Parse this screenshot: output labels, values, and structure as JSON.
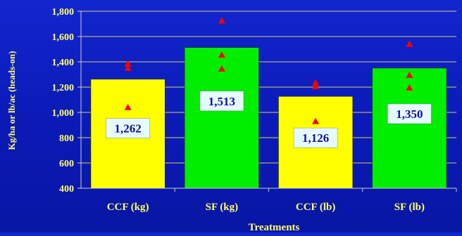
{
  "colors": {
    "background": "#0b1ab6",
    "grid": "#d8d070",
    "axis_text": "#ffff66",
    "bar_yellow": "#ffff00",
    "bar_green": "#00ee00",
    "marker": "#ff0000",
    "label_box": "#e6fbff",
    "label_text": "#1010a0"
  },
  "chart_data": {
    "type": "bar",
    "title": "",
    "xlabel": "Treatments",
    "ylabel": "Kg/ha or lb/ac (heads-on)",
    "ylim": [
      400,
      1800
    ],
    "yticks": [
      400,
      600,
      800,
      1000,
      1200,
      1400,
      1600,
      1800
    ],
    "ytick_labels": [
      "400",
      "600",
      "800",
      "1,000",
      "1,200",
      "1,400",
      "1,600",
      "1,800"
    ],
    "grid": true,
    "categories": [
      "CCF (kg)",
      "SF (kg)",
      "CCF (lb)",
      "SF (lb)"
    ],
    "values": [
      1262,
      1513,
      1126,
      1350
    ],
    "value_labels": [
      "1,262",
      "1,513",
      "1,126",
      "1,350"
    ],
    "bar_colors": [
      "yellow",
      "green",
      "yellow",
      "green"
    ],
    "markers": [
      [
        1385,
        1350,
        1040
      ],
      [
        1725,
        1455,
        1345
      ],
      [
        1235,
        1205,
        930
      ],
      [
        1540,
        1295,
        1195
      ]
    ]
  }
}
